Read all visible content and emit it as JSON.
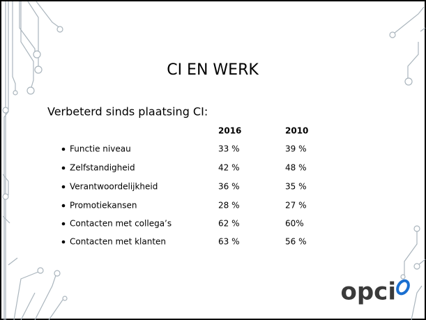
{
  "slide": {
    "title": "CI EN WERK",
    "subtitle": "Verbeterd sinds plaatsing CI:",
    "table": {
      "header": [
        "2016",
        "2010"
      ],
      "rows": [
        [
          "Functie niveau",
          "33 %",
          "39 %"
        ],
        [
          "Zelfstandigheid",
          "42 %",
          "48 %"
        ],
        [
          "Verantwoordelijkheid",
          "36 %",
          "35 %"
        ],
        [
          "Promotiekansen",
          "28 %",
          "27 %"
        ],
        [
          "Contacten met collega’s",
          "62 %",
          "60%"
        ],
        [
          "Contacten met klanten",
          "63 %",
          "56 %"
        ]
      ]
    },
    "logo": "opci"
  }
}
